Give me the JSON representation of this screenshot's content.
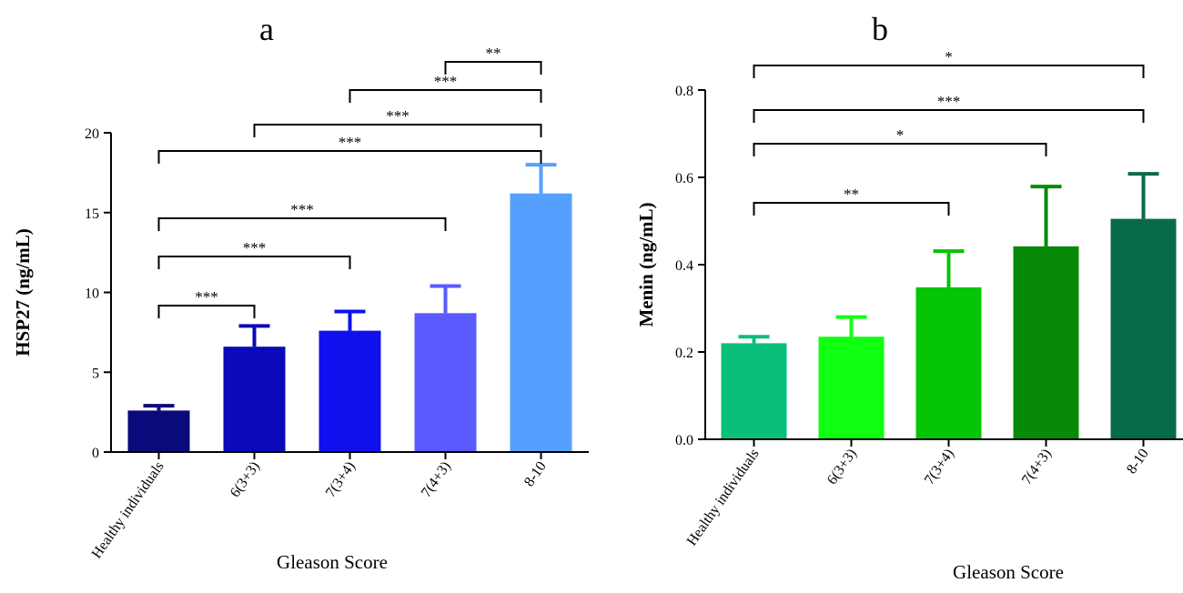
{
  "chart_data": [
    {
      "panel": "a",
      "type": "bar",
      "categories": [
        "Healthy individuals",
        "6(3+3)",
        "7(3+4)",
        "7(4+3)",
        "8-10"
      ],
      "values": [
        2.6,
        6.6,
        7.6,
        8.7,
        16.2
      ],
      "errors": [
        0.3,
        1.3,
        1.2,
        1.7,
        1.8
      ],
      "colors": [
        "#0a0a7a",
        "#0a0ab8",
        "#1010ee",
        "#5a5aff",
        "#55a0ff"
      ],
      "ylabel": "HSP27 (ng/mL)",
      "xlabel": "Gleason Score",
      "ylim": [
        0,
        20
      ],
      "yticks": [
        "0",
        "5",
        "10",
        "15",
        "20"
      ],
      "yticks_values": [
        0,
        5,
        10,
        15,
        20
      ],
      "comparisons": [
        {
          "from": 0,
          "to": 1,
          "label": "***"
        },
        {
          "from": 0,
          "to": 2,
          "label": "***"
        },
        {
          "from": 0,
          "to": 3,
          "label": "***"
        },
        {
          "from": 0,
          "to": 4,
          "label": "***"
        },
        {
          "from": 1,
          "to": 4,
          "label": "***"
        },
        {
          "from": 2,
          "to": 4,
          "label": "***"
        },
        {
          "from": 3,
          "to": 4,
          "label": "**"
        }
      ]
    },
    {
      "panel": "b",
      "type": "bar",
      "categories": [
        "Healthy individuals",
        "6(3+3)",
        "7(3+4)",
        "7(4+3)",
        "8-10"
      ],
      "values": [
        0.22,
        0.235,
        0.348,
        0.442,
        0.505
      ],
      "errors": [
        0.015,
        0.045,
        0.083,
        0.137,
        0.103
      ],
      "colors": [
        "#0abf7a",
        "#11ff11",
        "#06c406",
        "#078a07",
        "#086b48"
      ],
      "ylabel": "Menin (ng/mL)",
      "xlabel": "Gleason Score",
      "ylim": [
        0,
        0.8
      ],
      "yticks": [
        "0.0",
        "0.2",
        "0.4",
        "0.6",
        "0.8"
      ],
      "yticks_values": [
        0,
        0.2,
        0.4,
        0.6,
        0.8
      ],
      "comparisons": [
        {
          "from": 0,
          "to": 2,
          "label": "**"
        },
        {
          "from": 0,
          "to": 3,
          "label": "*"
        },
        {
          "from": 0,
          "to": 4,
          "label": "***"
        },
        {
          "from": 0,
          "to": 4,
          "label": "*"
        }
      ]
    }
  ]
}
